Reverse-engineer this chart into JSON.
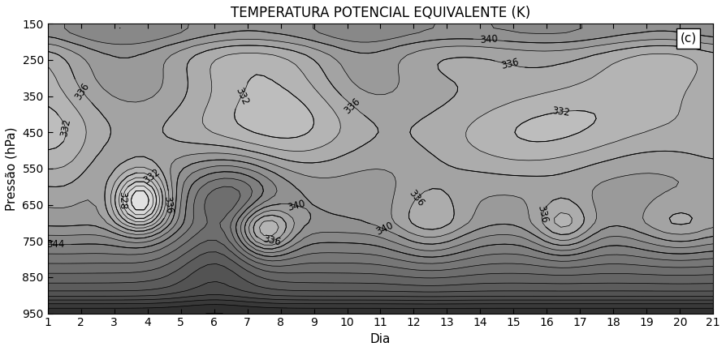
{
  "title": "TEMPERATURA POTENCIAL EQUIVALENTE (K)",
  "xlabel": "Dia",
  "ylabel": "Pressão (hPa)",
  "panel_label": "(c)",
  "contour_min": 316,
  "contour_max": 374,
  "contour_step": 2,
  "label_levels": [
    324,
    328,
    332,
    336,
    340,
    344
  ],
  "background_color": "#ffffff",
  "ylim_bottom": 950,
  "ylim_top": 150,
  "xlim_left": 1,
  "xlim_right": 21,
  "yticks": [
    150,
    250,
    350,
    450,
    550,
    650,
    750,
    850,
    950
  ],
  "xticks": [
    1,
    2,
    3,
    4,
    5,
    6,
    7,
    8,
    9,
    10,
    11,
    12,
    13,
    14,
    15,
    16,
    17,
    18,
    19,
    20,
    21
  ],
  "figsize": [
    8.94,
    4.33
  ],
  "dpi": 100
}
